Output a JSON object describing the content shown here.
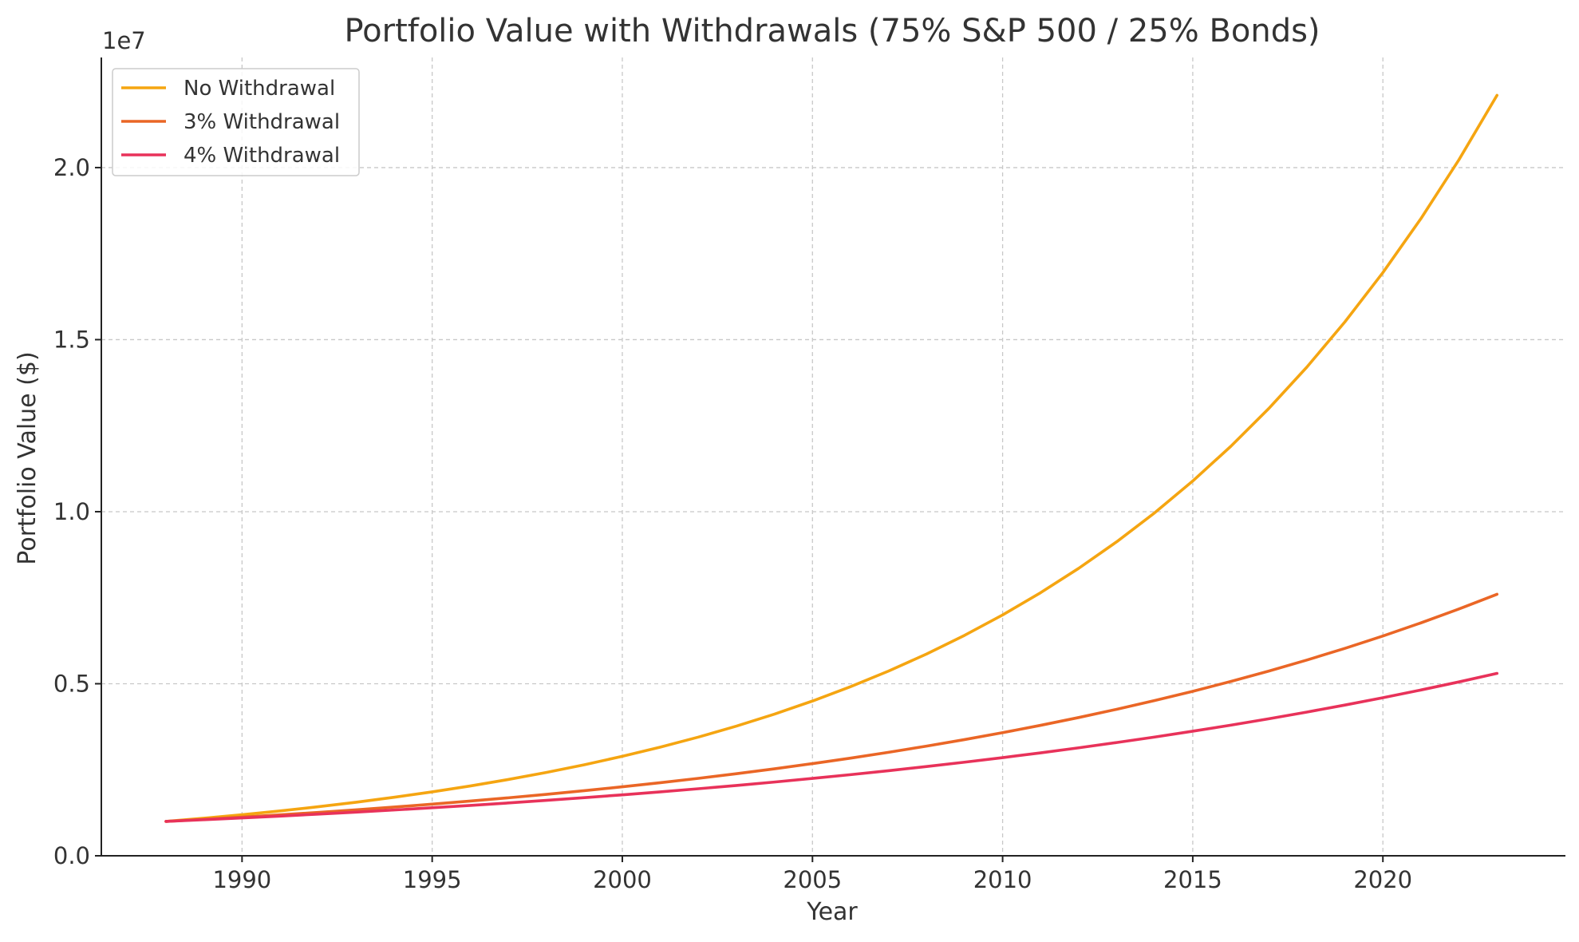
{
  "chart_data": {
    "type": "line",
    "title": "Portfolio Value with Withdrawals (75% S&P 500 / 25% Bonds)",
    "xlabel": "Year",
    "ylabel": "Portfolio Value ($)",
    "y_scale_label": "1e7",
    "xlim": [
      1986.3,
      2024.8
    ],
    "ylim": [
      0,
      23200000
    ],
    "x_ticks": [
      1990,
      1995,
      2000,
      2005,
      2010,
      2015,
      2020
    ],
    "x_tick_labels": [
      "1990",
      "1995",
      "2000",
      "2005",
      "2010",
      "2015",
      "2020"
    ],
    "y_ticks": [
      0,
      5000000,
      10000000,
      15000000,
      20000000
    ],
    "y_tick_labels": [
      "0.0",
      "0.5",
      "1.0",
      "1.5",
      "2.0"
    ],
    "grid": true,
    "legend_position": "top-left",
    "x": [
      1988,
      1989,
      1990,
      1991,
      1992,
      1993,
      1994,
      1995,
      1996,
      1997,
      1998,
      1999,
      2000,
      2001,
      2002,
      2003,
      2004,
      2005,
      2006,
      2007,
      2008,
      2009,
      2010,
      2011,
      2012,
      2013,
      2014,
      2015,
      2016,
      2017,
      2018,
      2019,
      2020,
      2021,
      2022,
      2023
    ],
    "series": [
      {
        "name": "No Withdrawal",
        "color": "#f5a511",
        "start": 1000000,
        "end": 22100000
      },
      {
        "name": "3% Withdrawal",
        "color": "#ea6626",
        "start": 1000000,
        "end": 7600000
      },
      {
        "name": "4% Withdrawal",
        "color": "#e8325a",
        "start": 1000000,
        "end": 5300000
      }
    ]
  }
}
